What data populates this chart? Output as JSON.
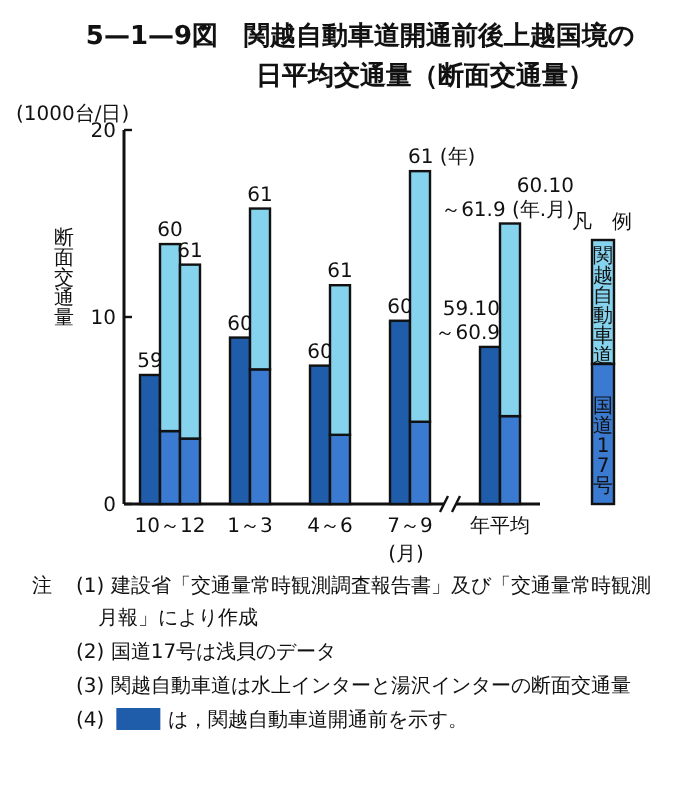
{
  "chart_data": {
    "type": "bar",
    "title": "5—1—9図　関越自動車道開通前後上越国境の",
    "subtitle": "日平均交通量（断面交通量）",
    "ylabel": "断面交通量",
    "xlabel": "(月)",
    "legend_title": "凡　例",
    "legend": "right",
    "stacked": true,
    "categories": [
      null,
      null,
      "10～12",
      null,
      null,
      null,
      null,
      null,
      null,
      null,
      "1～3",
      null,
      null,
      null,
      null,
      null,
      null,
      null,
      "4～6",
      null,
      null,
      null,
      null,
      null,
      null,
      null,
      "7～9",
      null,
      null,
      null,
      null,
      null,
      null,
      null,
      null,
      "年平均",
      null
    ],
    "series": [
      {
        "name": "国道17号",
        "color": "#3a7ad0",
        "colors": [
          "#1f5caa",
          null,
          "#3a7ad0",
          null,
          "#3a7ad0",
          null,
          null,
          null,
          null,
          "#1f5caa",
          null,
          "#3a7ad0",
          null,
          null,
          null,
          null,
          null,
          "#1f5caa",
          null,
          "#3a7ad0",
          null,
          null,
          null,
          null,
          null,
          "#1f5caa",
          null,
          "#3a7ad0",
          null,
          null,
          null,
          null,
          null,
          null,
          "#1f5caa",
          null,
          "#3a7ad0"
        ],
        "values": [
          6.9,
          null,
          3.9,
          null,
          3.5,
          null,
          null,
          null,
          null,
          8.9,
          null,
          7.2,
          null,
          null,
          null,
          null,
          null,
          7.4,
          null,
          3.7,
          null,
          null,
          null,
          null,
          null,
          9.8,
          null,
          4.4,
          null,
          null,
          null,
          null,
          null,
          null,
          8.4,
          null,
          4.7
        ]
      },
      {
        "name": "関越自動車道",
        "color": "#86d3ee",
        "values": [
          null,
          null,
          10.0,
          null,
          9.3,
          null,
          null,
          null,
          null,
          null,
          null,
          8.6,
          null,
          null,
          null,
          null,
          null,
          null,
          null,
          8.0,
          null,
          null,
          null,
          null,
          null,
          null,
          null,
          13.4,
          null,
          null,
          null,
          null,
          null,
          null,
          null,
          null,
          10.3
        ]
      }
    ],
    "ylim": [
      0,
      20
    ],
    "yticks": [
      0,
      10,
      20
    ],
    "annotations": [
      "(1000台/日)",
      "注",
      "(1) 建設省「交通量常時観測調査報告書」及び「交通量常時観測月報」により作成",
      "(2) 国道17号は浅貝のデータ",
      "(3) 関越自動車道は水上インターと湯沢インターの断面交通量",
      "(4)",
      "は，関越自動車道開通前を示す。",
      "59",
      "60",
      "61",
      "60",
      "61",
      "60",
      "61",
      "60",
      "61 (年)",
      "59.10\n～60.9",
      "60.10\n～61.9 (年.月)"
    ]
  }
}
